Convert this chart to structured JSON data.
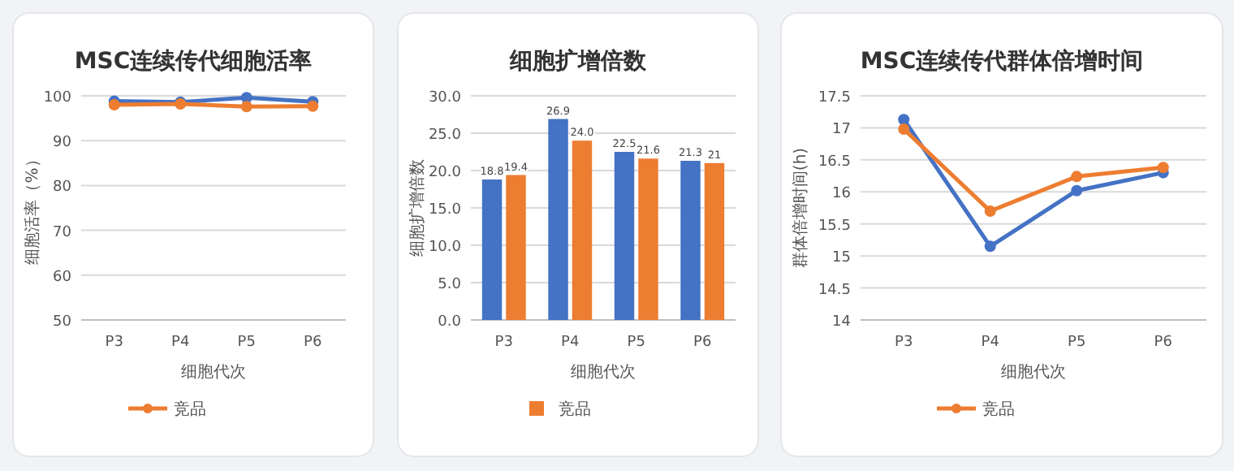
{
  "chart_data": [
    {
      "type": "line",
      "title": "MSC连续传代细胞活率",
      "xlabel": "细胞代次",
      "ylabel": "细胞活率（%）",
      "categories": [
        "P3",
        "P4",
        "P5",
        "P6"
      ],
      "series": [
        {
          "color": "#4472c4",
          "values": [
            98.8,
            98.6,
            99.6,
            98.7
          ]
        },
        {
          "name": "竞品",
          "color": "#ed7d31",
          "values": [
            98.0,
            98.2,
            97.6,
            97.7
          ]
        }
      ],
      "ylim": [
        50,
        100
      ],
      "yticks": [
        50,
        60,
        70,
        80,
        90,
        100
      ],
      "grid": "y",
      "legend": "bottom",
      "marker": "circle"
    },
    {
      "type": "bar",
      "title": "细胞扩增倍数",
      "xlabel": "细胞代次",
      "ylabel": "细胞扩增倍数",
      "categories": [
        "P3",
        "P4",
        "P5",
        "P6"
      ],
      "series": [
        {
          "color": "#4472c4",
          "values": [
            18.8,
            26.9,
            22.5,
            21.3
          ],
          "value_labels": [
            "18.8",
            "26.9",
            "22.5",
            "21.3"
          ]
        },
        {
          "name": "竞品",
          "color": "#ed7d31",
          "values": [
            19.4,
            24.0,
            21.6,
            21
          ],
          "value_labels": [
            "19.4",
            "24.0",
            "21.6",
            "21"
          ]
        }
      ],
      "ylim": [
        0,
        30
      ],
      "yticks": [
        {
          "value": 0,
          "label": "0.0"
        },
        {
          "value": 5,
          "label": "5.0"
        },
        {
          "value": 10,
          "label": "10.0"
        },
        {
          "value": 15,
          "label": "15.0"
        },
        {
          "value": 20,
          "label": "20.0"
        },
        {
          "value": 25,
          "label": "25.0"
        },
        {
          "value": 30,
          "label": "30.0"
        }
      ],
      "grid": "y",
      "legend": "bottom"
    },
    {
      "type": "line",
      "title": "MSC连续传代群体倍增时间",
      "xlabel": "细胞代次",
      "ylabel": "群体倍增时间(h)",
      "categories": [
        "P3",
        "P4",
        "P5",
        "P6"
      ],
      "series": [
        {
          "color": "#4472c4",
          "values": [
            17.13,
            15.15,
            16.02,
            16.3
          ]
        },
        {
          "name": "竞品",
          "color": "#ed7d31",
          "values": [
            16.98,
            15.7,
            16.24,
            16.38
          ]
        }
      ],
      "ylim": [
        14,
        17.5
      ],
      "yticks": [
        14,
        14.5,
        15,
        15.5,
        16,
        16.5,
        17,
        17.5
      ],
      "grid": "y",
      "legend": "bottom",
      "marker": "circle"
    }
  ]
}
